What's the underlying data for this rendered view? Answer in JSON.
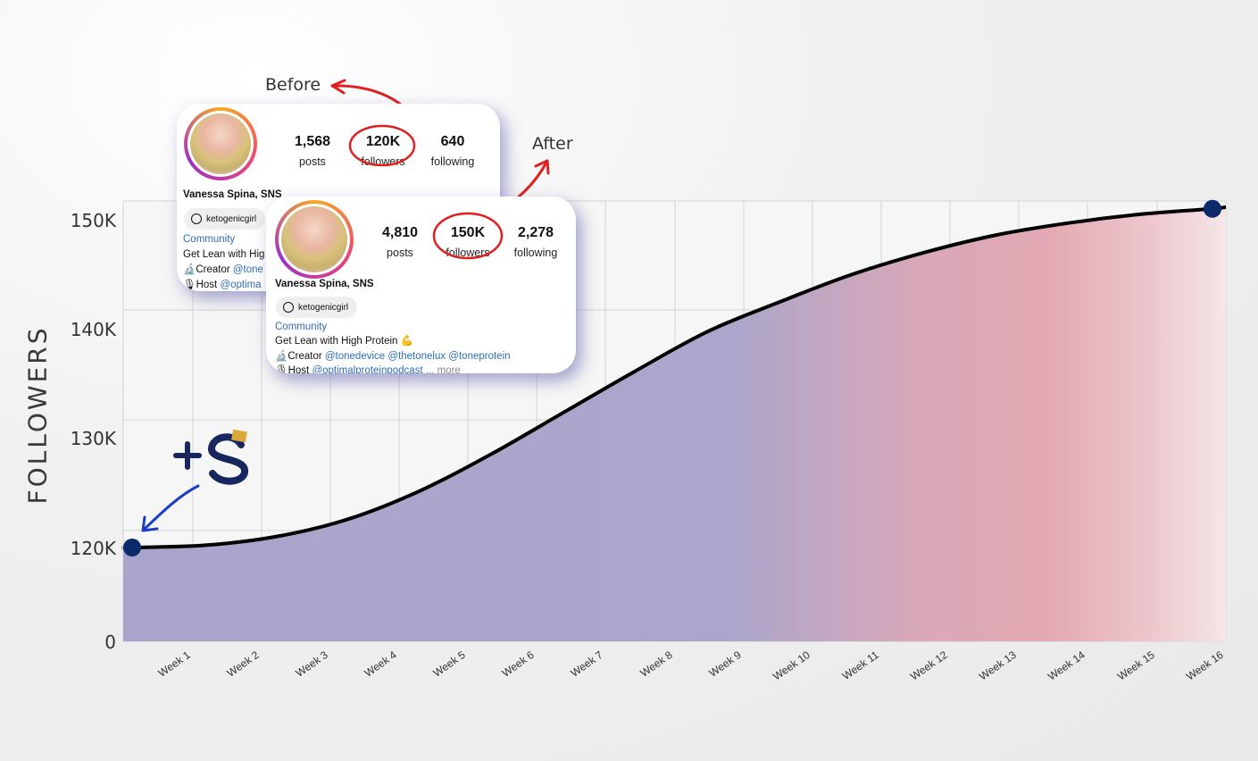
{
  "chart_data": {
    "type": "area",
    "ylabel": "FOLLOWERS",
    "categories": [
      "Week 1",
      "Week 2",
      "Week 3",
      "Week 4",
      "Week 5",
      "Week 6",
      "Week 7",
      "Week 8",
      "Week 9",
      "Week 10",
      "Week 11",
      "Week 12",
      "Week 13",
      "Week 14",
      "Week 15",
      "Week 16"
    ],
    "y_ticks": [
      {
        "label": "0"
      },
      {
        "label": "120K"
      },
      {
        "label": "130K"
      },
      {
        "label": "140K"
      },
      {
        "label": "150K"
      }
    ],
    "series": [
      {
        "values": [
          120000,
          120200,
          121000,
          122600,
          125200,
          128600,
          132400,
          136200,
          139800,
          142500,
          145000,
          147000,
          148600,
          149700,
          150500,
          151000
        ]
      }
    ],
    "grid": true,
    "fill": "gradient purple to pink",
    "colors": {
      "line": "#000000",
      "marker": "#0b2a6b",
      "fill_start": "#a9a4cb",
      "fill_end": "#e3a9b3"
    }
  },
  "annotations": {
    "before": "Before",
    "after": "After"
  },
  "before_card": {
    "posts": "1,568",
    "posts_label": "posts",
    "followers": "120K",
    "followers_label": "followers",
    "following": "640",
    "following_label": "following",
    "name": "Vanessa Spina, SNS",
    "handle": "ketogenicgirl",
    "category": "Community",
    "bio1": "Get Lean with Hig",
    "bio2_prefix": "🔬Creator ",
    "bio2_link": "@tone",
    "bio3_prefix": "🎙Host ",
    "bio3_link": "@optima"
  },
  "after_card": {
    "posts": "4,810",
    "posts_label": "posts",
    "followers": "150K",
    "followers_label": "followers",
    "following": "2,278",
    "following_label": "following",
    "name": "Vanessa Spina, SNS",
    "handle": "ketogenicgirl",
    "category": "Community",
    "bio1": "Get Lean with High Protein 💪",
    "bio2_prefix": "🔬Creator ",
    "bio2_link": "@tonedevice @thetonelux @toneprotein",
    "bio3_prefix": "🎙Host ",
    "bio3_link": "@optimalproteinpodcast",
    "bio3_more": " ... more"
  },
  "logo": {
    "name": "+S-logo"
  }
}
